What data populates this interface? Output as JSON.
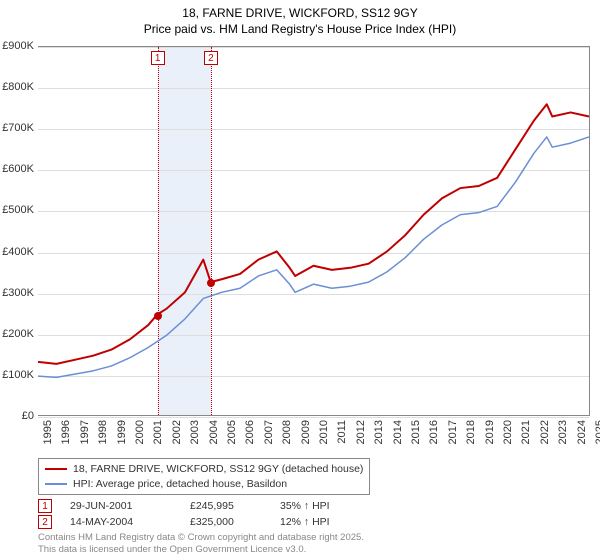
{
  "title_line1": "18, FARNE DRIVE, WICKFORD, SS12 9GY",
  "title_line2": "Price paid vs. HM Land Registry's House Price Index (HPI)",
  "title_fontsize": 12,
  "chart": {
    "type": "line",
    "background_color": "#ffffff",
    "grid_color": "#dddddd",
    "axis_color": "#888888",
    "x": {
      "min": 1995,
      "max": 2025,
      "ticks": [
        1995,
        1996,
        1997,
        1998,
        1999,
        2000,
        2001,
        2002,
        2003,
        2004,
        2005,
        2006,
        2007,
        2008,
        2009,
        2010,
        2011,
        2012,
        2013,
        2014,
        2015,
        2016,
        2017,
        2018,
        2019,
        2020,
        2021,
        2022,
        2023,
        2024,
        2025
      ]
    },
    "y": {
      "min": 0,
      "max": 900000,
      "tick_step": 100000,
      "ticks": [
        0,
        100000,
        200000,
        300000,
        400000,
        500000,
        600000,
        700000,
        800000,
        900000
      ],
      "tick_labels": [
        "£0",
        "£100K",
        "£200K",
        "£300K",
        "£400K",
        "£500K",
        "£600K",
        "£700K",
        "£800K",
        "£900K"
      ]
    },
    "band": {
      "start": 2001.5,
      "end": 2004.4,
      "color": "#eaf0fa"
    },
    "marker_lines": [
      {
        "id": "1",
        "x": 2001.5,
        "color": "#c00000"
      },
      {
        "id": "2",
        "x": 2004.4,
        "color": "#c00000"
      }
    ],
    "series": [
      {
        "name": "18, FARNE DRIVE, WICKFORD, SS12 9GY (detached house)",
        "color": "#c00000",
        "line_width": 2,
        "points": [
          [
            1995,
            130000
          ],
          [
            1996,
            125000
          ],
          [
            1997,
            135000
          ],
          [
            1998,
            145000
          ],
          [
            1999,
            160000
          ],
          [
            2000,
            185000
          ],
          [
            2001,
            220000
          ],
          [
            2001.5,
            245995
          ],
          [
            2002,
            260000
          ],
          [
            2003,
            300000
          ],
          [
            2004,
            380000
          ],
          [
            2004.4,
            325000
          ],
          [
            2005,
            332000
          ],
          [
            2006,
            345000
          ],
          [
            2007,
            380000
          ],
          [
            2008,
            400000
          ],
          [
            2008.7,
            360000
          ],
          [
            2009,
            340000
          ],
          [
            2010,
            365000
          ],
          [
            2011,
            355000
          ],
          [
            2012,
            360000
          ],
          [
            2013,
            370000
          ],
          [
            2014,
            400000
          ],
          [
            2015,
            440000
          ],
          [
            2016,
            490000
          ],
          [
            2017,
            530000
          ],
          [
            2018,
            555000
          ],
          [
            2019,
            560000
          ],
          [
            2020,
            580000
          ],
          [
            2021,
            650000
          ],
          [
            2022,
            720000
          ],
          [
            2022.7,
            760000
          ],
          [
            2023,
            730000
          ],
          [
            2024,
            740000
          ],
          [
            2025,
            730000
          ]
        ]
      },
      {
        "name": "HPI: Average price, detached house, Basildon",
        "color": "#6b8fd4",
        "line_width": 1.5,
        "points": [
          [
            1995,
            95000
          ],
          [
            1996,
            92000
          ],
          [
            1997,
            100000
          ],
          [
            1998,
            108000
          ],
          [
            1999,
            120000
          ],
          [
            2000,
            140000
          ],
          [
            2001,
            165000
          ],
          [
            2002,
            195000
          ],
          [
            2003,
            235000
          ],
          [
            2004,
            285000
          ],
          [
            2005,
            300000
          ],
          [
            2006,
            310000
          ],
          [
            2007,
            340000
          ],
          [
            2008,
            355000
          ],
          [
            2008.7,
            320000
          ],
          [
            2009,
            300000
          ],
          [
            2010,
            320000
          ],
          [
            2011,
            310000
          ],
          [
            2012,
            315000
          ],
          [
            2013,
            325000
          ],
          [
            2014,
            350000
          ],
          [
            2015,
            385000
          ],
          [
            2016,
            430000
          ],
          [
            2017,
            465000
          ],
          [
            2018,
            490000
          ],
          [
            2019,
            495000
          ],
          [
            2020,
            510000
          ],
          [
            2021,
            570000
          ],
          [
            2022,
            640000
          ],
          [
            2022.7,
            680000
          ],
          [
            2023,
            655000
          ],
          [
            2024,
            665000
          ],
          [
            2025,
            680000
          ]
        ]
      }
    ],
    "sale_points": [
      {
        "x": 2001.5,
        "y": 245995,
        "color": "#c00000"
      },
      {
        "x": 2004.4,
        "y": 325000,
        "color": "#c00000"
      }
    ]
  },
  "legend": {
    "items": [
      {
        "label": "18, FARNE DRIVE, WICKFORD, SS12 9GY (detached house)",
        "color": "#c00000"
      },
      {
        "label": "HPI: Average price, detached house, Basildon",
        "color": "#6b8fd4"
      }
    ]
  },
  "events": [
    {
      "id": "1",
      "date": "29-JUN-2001",
      "price": "£245,995",
      "delta": "35% ↑ HPI"
    },
    {
      "id": "2",
      "date": "14-MAY-2004",
      "price": "£325,000",
      "delta": "12% ↑ HPI"
    }
  ],
  "footer_line1": "Contains HM Land Registry data © Crown copyright and database right 2025.",
  "footer_line2": "This data is licensed under the Open Government Licence v3.0."
}
